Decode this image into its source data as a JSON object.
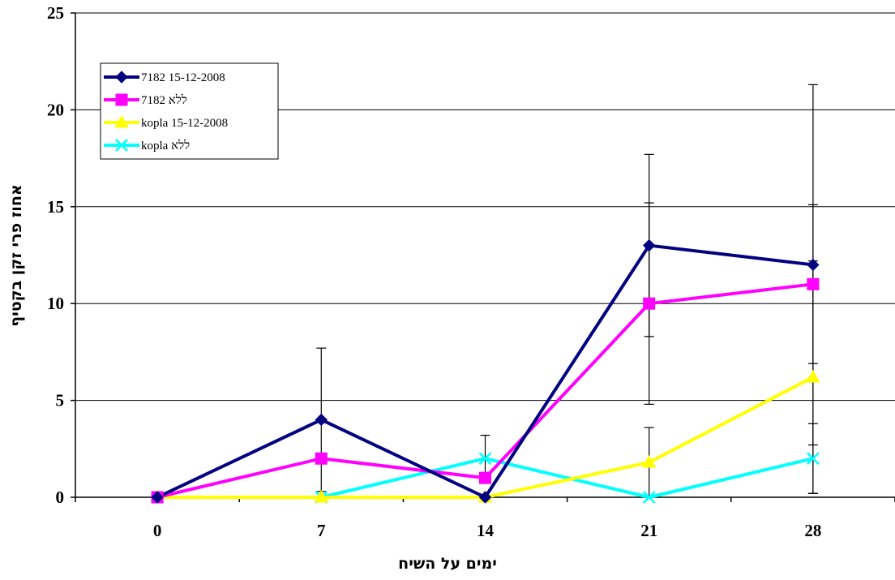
{
  "chart_data": {
    "type": "line",
    "title": "",
    "xlabel": "ימים על השיח",
    "ylabel": "אחוז פרי זקן בקטיף",
    "x": [
      0,
      7,
      14,
      21,
      28
    ],
    "x_tick_labels": [
      "0",
      "7",
      "14",
      "21",
      "28"
    ],
    "ylim": [
      0,
      25
    ],
    "y_ticks": [
      0,
      5,
      10,
      15,
      20,
      25
    ],
    "y_tick_labels": [
      "0",
      "5",
      "10",
      "15",
      "20",
      "25"
    ],
    "grid": "horizontal",
    "legend_position": "top-left",
    "series": [
      {
        "name": "7182  15-12-2008",
        "color": "#000080",
        "marker": "diamond",
        "values": [
          0,
          4,
          0,
          13,
          12
        ],
        "error": [
          0,
          3.7,
          0,
          4.7,
          9.3
        ]
      },
      {
        "name": "7182  ללא",
        "color": "#FF00FF",
        "marker": "square",
        "values": [
          0,
          2,
          1,
          10,
          11
        ],
        "error": [
          0,
          0,
          0,
          5.2,
          4.1
        ]
      },
      {
        "name": "kopla  15-12-2008",
        "color": "#FFFF00",
        "marker": "triangle",
        "values": [
          0,
          0,
          0,
          1.8,
          6.2
        ],
        "error": [
          0,
          0,
          0,
          1.8,
          6.0
        ]
      },
      {
        "name": "kopla  ללא",
        "color": "#00FFFF",
        "marker": "x",
        "values": [
          0,
          0,
          2,
          0,
          2
        ],
        "error": [
          0,
          0,
          1.2,
          0,
          1.8
        ]
      }
    ]
  }
}
